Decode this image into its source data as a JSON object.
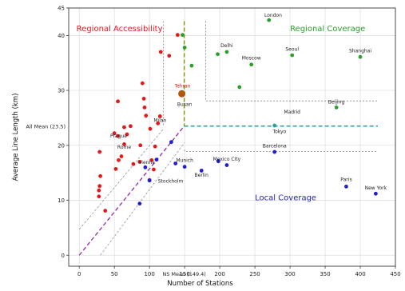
{
  "chart_data": {
    "type": "scatter",
    "xlabel": "Number of Stations",
    "ylabel": "Average Line Length (km)",
    "xlim": [
      -15,
      450
    ],
    "ylim": [
      -2,
      45
    ],
    "xticks": [
      {
        "v": 0,
        "label": "0"
      },
      {
        "v": 50,
        "label": "50"
      },
      {
        "v": 100,
        "label": "100"
      },
      {
        "v": 150,
        "label": "150"
      },
      {
        "v": 200,
        "label": "200"
      },
      {
        "v": 250,
        "label": "250"
      },
      {
        "v": 300,
        "label": "300"
      },
      {
        "v": 350,
        "label": "350"
      },
      {
        "v": 400,
        "label": "400"
      },
      {
        "v": 450,
        "label": "450"
      }
    ],
    "yticks": [
      {
        "v": 0,
        "label": "0"
      },
      {
        "v": 10,
        "label": "10"
      },
      {
        "v": 20,
        "label": "20"
      },
      {
        "v": 30,
        "label": "30"
      },
      {
        "v": 40,
        "label": "40"
      },
      {
        "v": 45,
        "label": "45"
      }
    ],
    "grid": true,
    "colors": {
      "accessibility": "#e31a1c",
      "coverage": "#2ca02c",
      "coverage_light": "#7ddc1f",
      "local": "#1f1fcf",
      "teal": "#2a9d9d",
      "tehran": "#b35806",
      "ns_mean_line": "#8b8b00",
      "diag": "#8e2aa8",
      "all_mean_line": "#2a9d9d"
    },
    "region_labels": [
      {
        "text": "Regional Accessibility",
        "x": -4,
        "y": 40.8,
        "color": "#e31a1c",
        "size": 10
      },
      {
        "text": "Regional Coverage",
        "x": 300,
        "y": 40.8,
        "color": "#2ca02c",
        "size": 10
      },
      {
        "text": "Local Coverage",
        "x": 250,
        "y": 10,
        "color": "#1f1fcf",
        "size": 10
      }
    ],
    "mean_lines": {
      "all_mean": {
        "value": 23.5,
        "label": "All Mean (23.5)"
      },
      "ns_mean": {
        "value": 149.4,
        "label": "NS Mean (149.4)"
      }
    },
    "series": [
      {
        "name": "",
        "color": "#e31a1c",
        "points": [
          [
            28,
            10.7
          ],
          [
            28,
            11.8
          ],
          [
            29,
            12.6
          ],
          [
            30,
            14.4
          ],
          [
            29,
            18.8
          ],
          [
            37,
            8.1
          ],
          [
            52,
            15.7
          ],
          [
            56,
            17.3
          ],
          [
            60,
            18.0
          ],
          [
            64,
            20.2
          ],
          [
            68,
            22.0
          ],
          [
            73,
            23.5
          ],
          [
            77,
            16.6
          ],
          [
            86,
            17.0
          ],
          [
            87,
            20.0
          ],
          [
            90,
            31.3
          ],
          [
            93,
            26.9
          ],
          [
            95,
            25.4
          ],
          [
            92,
            28.5
          ],
          [
            101,
            23.0
          ],
          [
            103,
            17.3
          ],
          [
            106,
            15.6
          ],
          [
            108,
            19.8
          ],
          [
            115,
            25.3
          ],
          [
            112,
            24.0
          ],
          [
            55,
            28.0
          ],
          [
            55,
            21.7
          ],
          [
            50,
            22.2
          ],
          [
            64,
            23.3
          ],
          [
            100,
            13.7
          ],
          [
            116,
            37.0
          ],
          [
            128,
            36.3
          ],
          [
            140,
            40.1
          ]
        ]
      },
      {
        "name": "",
        "color": "#2ca02c",
        "points": [
          [
            147,
            40.1
          ],
          [
            150,
            37.8
          ],
          [
            160,
            34.5
          ],
          [
            197,
            36.6
          ],
          [
            210,
            37.0
          ],
          [
            228,
            30.6
          ],
          [
            245,
            34.7
          ],
          [
            270,
            42.8
          ],
          [
            303,
            36.4
          ],
          [
            366,
            26.9
          ],
          [
            400,
            36.1
          ]
        ]
      },
      {
        "name": "",
        "color": "#1f1fcf",
        "points": [
          [
            86,
            9.4
          ],
          [
            94,
            16.0
          ],
          [
            100,
            13.6
          ],
          [
            110,
            17.4
          ],
          [
            131,
            20.6
          ],
          [
            137,
            16.7
          ],
          [
            150,
            16.1
          ],
          [
            174,
            15.4
          ],
          [
            198,
            17.1
          ],
          [
            210,
            16.4
          ],
          [
            278,
            18.8
          ],
          [
            380,
            12.5
          ],
          [
            422,
            11.2
          ]
        ]
      },
      {
        "name": "",
        "color": "#2a9d9d",
        "points": [
          [
            278,
            23.6
          ]
        ]
      },
      {
        "name": "",
        "color": "#b35806",
        "points": [
          [
            146,
            29.4
          ]
        ]
      }
    ],
    "annotations": [
      {
        "text": "London",
        "x": 276,
        "y": 43.4
      },
      {
        "text": "Seoul",
        "x": 303,
        "y": 37.2
      },
      {
        "text": "Delhi",
        "x": 210,
        "y": 37.9
      },
      {
        "text": "Moscow",
        "x": 245,
        "y": 35.6
      },
      {
        "text": "Shanghai",
        "x": 400,
        "y": 36.9
      },
      {
        "text": "Tehran",
        "x": 147,
        "y": 30.5,
        "color": "#e31a1c"
      },
      {
        "text": "Busan",
        "x": 150,
        "y": 27.2
      },
      {
        "text": "Madrid",
        "x": 303,
        "y": 25.8
      },
      {
        "text": "Beijing",
        "x": 366,
        "y": 27.6
      },
      {
        "text": "Milan",
        "x": 115,
        "y": 24.3
      },
      {
        "text": "Tokyo",
        "x": 285,
        "y": 22.2
      },
      {
        "text": "Prague",
        "x": 56,
        "y": 21.4
      },
      {
        "text": "Barcelona",
        "x": 278,
        "y": 19.6
      },
      {
        "text": "Rome",
        "x": 64,
        "y": 19.4
      },
      {
        "text": "Vienna",
        "x": 96,
        "y": 16.6
      },
      {
        "text": "Munich",
        "x": 150,
        "y": 17.0
      },
      {
        "text": "Mexico City",
        "x": 210,
        "y": 17.2
      },
      {
        "text": "Stockholm",
        "x": 130,
        "y": 13.2
      },
      {
        "text": "Berlin",
        "x": 174,
        "y": 14.3
      },
      {
        "text": "Paris",
        "x": 380,
        "y": 13.5
      },
      {
        "text": "New York",
        "x": 422,
        "y": 12.0
      }
    ]
  }
}
